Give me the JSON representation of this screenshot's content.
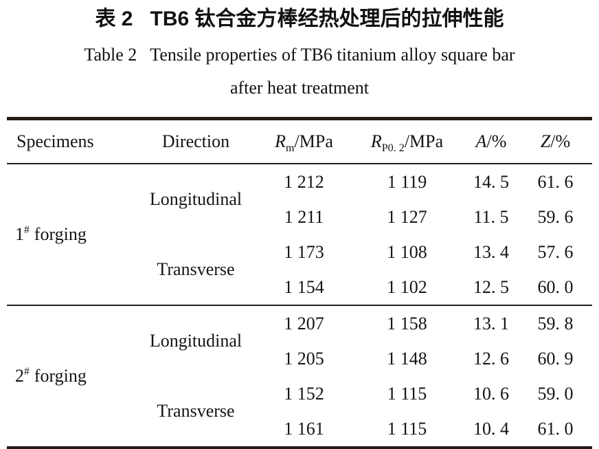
{
  "title": {
    "zh": "表 2   TB6 钛合金方棒经热处理后的拉伸性能",
    "en_line1": "Table 2   Tensile properties of TB6 titanium alloy square bar",
    "en_line2": "after heat treatment"
  },
  "table": {
    "headers": {
      "specimens": "Specimens",
      "direction": "Direction",
      "rm_sym": "R",
      "rm_sub": "m",
      "rm_unit": "/MPa",
      "rp_sym": "R",
      "rp_sub": "P0. 2",
      "rp_unit": "/MPa",
      "a_sym": "A",
      "a_unit": "/%",
      "z_sym": "Z",
      "z_unit": "/%"
    },
    "groups": [
      {
        "specimen_num": "1",
        "specimen_sup": "#",
        "specimen_label": "forging",
        "longitudinal_label": "Longitudinal",
        "transverse_label": "Transverse",
        "rows": [
          [
            "1 212",
            "1 119",
            "14. 5",
            "61. 6"
          ],
          [
            "1 211",
            "1 127",
            "11. 5",
            "59. 6"
          ],
          [
            "1 173",
            "1 108",
            "13. 4",
            "57. 6"
          ],
          [
            "1 154",
            "1 102",
            "12. 5",
            "60. 0"
          ]
        ]
      },
      {
        "specimen_num": "2",
        "specimen_sup": "#",
        "specimen_label": "forging",
        "longitudinal_label": "Longitudinal",
        "transverse_label": "Transverse",
        "rows": [
          [
            "1 207",
            "1 158",
            "13. 1",
            "59. 8"
          ],
          [
            "1 205",
            "1 148",
            "12. 6",
            "60. 9"
          ],
          [
            "1 152",
            "1 115",
            "10. 6",
            "59. 0"
          ],
          [
            "1 161",
            "1 115",
            "10. 4",
            "61. 0"
          ]
        ]
      }
    ]
  }
}
